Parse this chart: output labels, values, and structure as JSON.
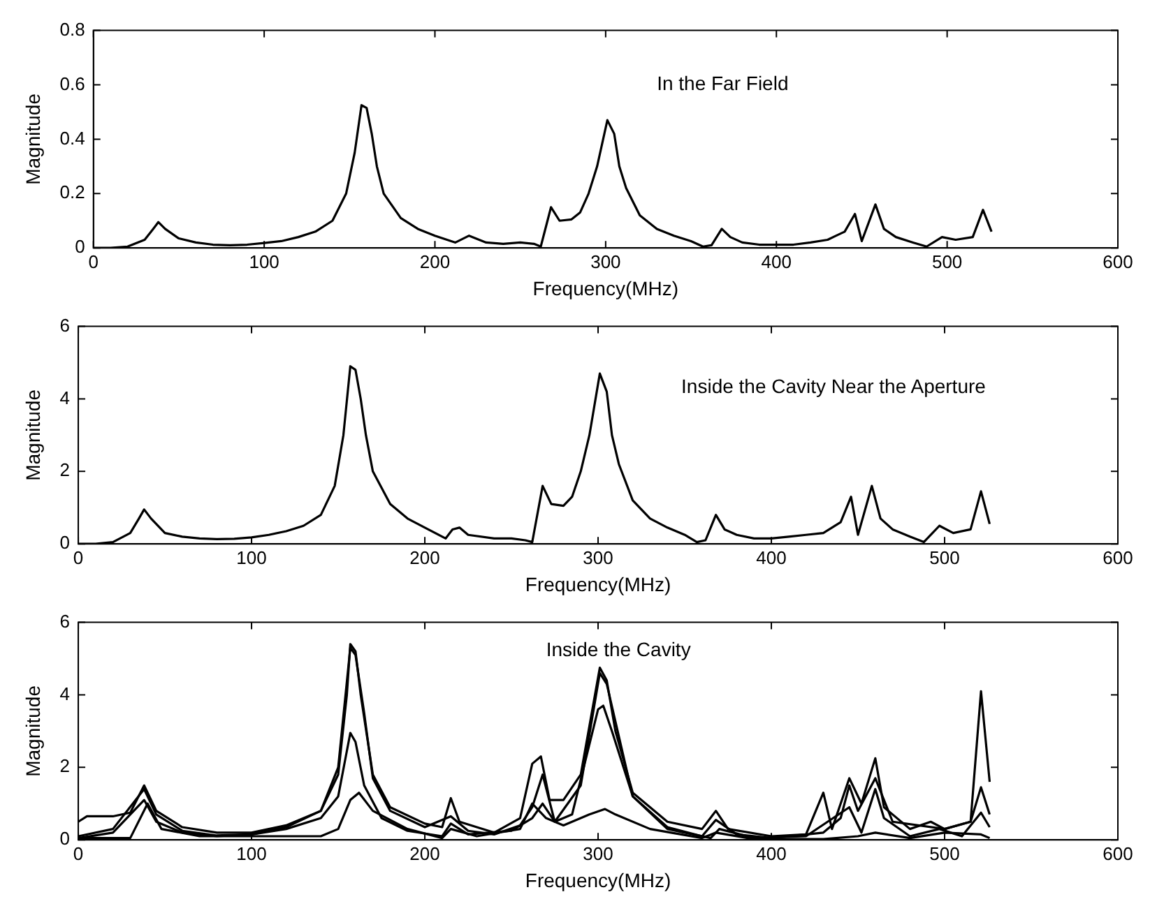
{
  "chart_data": [
    {
      "type": "line",
      "xlabel": "Frequency(MHz)",
      "ylabel": "Magnitude",
      "annotations": [
        "In the Far Field"
      ],
      "xlim": [
        0,
        600
      ],
      "xticks": [
        0,
        100,
        200,
        300,
        400,
        500,
        600
      ],
      "ylim": [
        0,
        0.8
      ],
      "yticks": [
        0,
        0.2,
        0.4,
        0.6,
        0.8
      ],
      "marker": "none",
      "line_style": "solid",
      "series": [
        {
          "color": "#000000",
          "x": [
            0,
            10,
            20,
            30,
            35,
            38,
            42,
            50,
            60,
            70,
            80,
            90,
            100,
            110,
            120,
            130,
            140,
            148,
            153,
            157,
            160,
            163,
            166,
            170,
            180,
            190,
            200,
            212,
            220,
            230,
            240,
            250,
            258,
            262,
            268,
            273,
            280,
            285,
            290,
            295,
            301,
            305,
            308,
            312,
            320,
            330,
            340,
            350,
            357,
            362,
            368,
            373,
            380,
            390,
            400,
            410,
            420,
            430,
            435,
            440,
            446,
            450,
            458,
            463,
            470,
            480,
            488,
            497,
            505,
            515,
            521,
            526
          ],
          "values": [
            0,
            0,
            0.005,
            0.03,
            0.07,
            0.095,
            0.07,
            0.035,
            0.02,
            0.012,
            0.01,
            0.012,
            0.018,
            0.025,
            0.04,
            0.06,
            0.1,
            0.2,
            0.35,
            0.525,
            0.515,
            0.42,
            0.3,
            0.2,
            0.11,
            0.07,
            0.045,
            0.02,
            0.045,
            0.02,
            0.015,
            0.02,
            0.015,
            0.005,
            0.15,
            0.1,
            0.105,
            0.13,
            0.2,
            0.3,
            0.47,
            0.42,
            0.3,
            0.22,
            0.12,
            0.07,
            0.045,
            0.025,
            0.005,
            0.01,
            0.07,
            0.04,
            0.02,
            0.012,
            0.012,
            0.012,
            0.02,
            0.03,
            0.045,
            0.06,
            0.125,
            0.025,
            0.16,
            0.07,
            0.04,
            0.02,
            0.005,
            0.04,
            0.03,
            0.04,
            0.14,
            0.06
          ]
        }
      ]
    },
    {
      "type": "line",
      "xlabel": "Frequency(MHz)",
      "ylabel": "Magnitude",
      "annotations": [
        "Inside the Cavity Near the Aperture"
      ],
      "xlim": [
        0,
        600
      ],
      "xticks": [
        0,
        100,
        200,
        300,
        400,
        500,
        600
      ],
      "ylim": [
        0,
        6
      ],
      "yticks": [
        0,
        2,
        4,
        6
      ],
      "marker": "none",
      "line_style": "solid",
      "series": [
        {
          "color": "#000000",
          "x": [
            0,
            10,
            20,
            30,
            35,
            38,
            42,
            50,
            60,
            70,
            80,
            90,
            100,
            110,
            120,
            130,
            140,
            148,
            153,
            157,
            160,
            163,
            166,
            170,
            180,
            190,
            200,
            212,
            216,
            220,
            225,
            240,
            250,
            258,
            262,
            268,
            273,
            280,
            285,
            290,
            295,
            301,
            305,
            308,
            312,
            320,
            330,
            340,
            350,
            357,
            362,
            368,
            373,
            380,
            390,
            400,
            410,
            420,
            430,
            435,
            440,
            446,
            450,
            458,
            463,
            470,
            480,
            488,
            497,
            505,
            515,
            521,
            526
          ],
          "values": [
            0,
            0,
            0.05,
            0.3,
            0.7,
            0.95,
            0.7,
            0.3,
            0.2,
            0.15,
            0.13,
            0.14,
            0.18,
            0.25,
            0.35,
            0.5,
            0.8,
            1.6,
            3.0,
            4.9,
            4.8,
            4.0,
            3.0,
            2.0,
            1.1,
            0.7,
            0.45,
            0.15,
            0.4,
            0.45,
            0.25,
            0.15,
            0.15,
            0.1,
            0.05,
            1.6,
            1.1,
            1.05,
            1.3,
            2.0,
            3.0,
            4.7,
            4.2,
            3.0,
            2.2,
            1.2,
            0.7,
            0.45,
            0.25,
            0.05,
            0.1,
            0.8,
            0.4,
            0.25,
            0.15,
            0.15,
            0.2,
            0.25,
            0.3,
            0.45,
            0.6,
            1.3,
            0.25,
            1.6,
            0.7,
            0.4,
            0.2,
            0.05,
            0.5,
            0.3,
            0.4,
            1.45,
            0.55
          ]
        }
      ]
    },
    {
      "type": "line",
      "xlabel": "Frequency(MHz)",
      "ylabel": "Magnitude",
      "annotations": [
        "Inside the Cavity"
      ],
      "xlim": [
        0,
        600
      ],
      "xticks": [
        0,
        100,
        200,
        300,
        400,
        500,
        600
      ],
      "ylim": [
        0,
        6
      ],
      "yticks": [
        0,
        2,
        4,
        6
      ],
      "marker": "none",
      "line_style": "solid",
      "series": [
        {
          "color": "#000000",
          "x": [
            0,
            5,
            20,
            30,
            38,
            45,
            60,
            80,
            100,
            120,
            140,
            150,
            155,
            157,
            160,
            163,
            170,
            180,
            200,
            210,
            215,
            220,
            240,
            255,
            262,
            267,
            272,
            280,
            290,
            301,
            305,
            310,
            320,
            340,
            360,
            368,
            375,
            400,
            420,
            430,
            435,
            445,
            452,
            460,
            465,
            480,
            492,
            500,
            515,
            521,
            526
          ],
          "values": [
            0.5,
            0.65,
            0.65,
            0.75,
            1.5,
            0.8,
            0.35,
            0.2,
            0.2,
            0.4,
            0.8,
            1.8,
            4.0,
            5.4,
            5.2,
            4.0,
            1.8,
            0.9,
            0.45,
            0.35,
            1.15,
            0.5,
            0.2,
            0.6,
            2.1,
            2.3,
            1.1,
            1.1,
            1.8,
            4.75,
            4.4,
            3.0,
            1.3,
            0.5,
            0.3,
            0.8,
            0.3,
            0.1,
            0.15,
            1.3,
            0.3,
            1.7,
            1.0,
            2.25,
            0.9,
            0.3,
            0.5,
            0.3,
            0.5,
            4.1,
            1.6
          ]
        },
        {
          "color": "#000000",
          "x": [
            0,
            20,
            38,
            45,
            60,
            80,
            100,
            120,
            140,
            150,
            157,
            160,
            165,
            170,
            180,
            200,
            215,
            225,
            240,
            255,
            262,
            268,
            275,
            290,
            301,
            305,
            320,
            340,
            360,
            368,
            380,
            400,
            430,
            440,
            445,
            450,
            460,
            470,
            500,
            515,
            521,
            526
          ],
          "values": [
            0.1,
            0.3,
            1.4,
            0.7,
            0.25,
            0.12,
            0.15,
            0.35,
            0.8,
            2.0,
            5.3,
            5.1,
            3.5,
            1.7,
            0.8,
            0.35,
            0.65,
            0.25,
            0.15,
            0.4,
            0.9,
            1.8,
            0.5,
            1.5,
            4.6,
            4.3,
            1.2,
            0.35,
            0.1,
            0.55,
            0.15,
            0.05,
            0.2,
            0.6,
            1.5,
            0.8,
            1.7,
            0.5,
            0.3,
            0.5,
            1.45,
            0.7
          ]
        },
        {
          "color": "#000000",
          "x": [
            0,
            20,
            38,
            45,
            60,
            80,
            100,
            120,
            140,
            150,
            157,
            160,
            165,
            175,
            190,
            210,
            215,
            225,
            250,
            262,
            268,
            275,
            285,
            300,
            303,
            308,
            320,
            340,
            365,
            370,
            390,
            420,
            445,
            452,
            460,
            465,
            480,
            497,
            510,
            521,
            526
          ],
          "values": [
            0.05,
            0.2,
            1.1,
            0.5,
            0.2,
            0.1,
            0.15,
            0.3,
            0.6,
            1.2,
            2.95,
            2.7,
            1.5,
            0.6,
            0.25,
            0.1,
            0.45,
            0.15,
            0.25,
            0.6,
            1.0,
            0.5,
            0.7,
            3.6,
            3.7,
            3.0,
            1.2,
            0.3,
            0.05,
            0.3,
            0.05,
            0.1,
            0.9,
            0.2,
            1.4,
            0.6,
            0.1,
            0.3,
            0.1,
            0.75,
            0.35
          ]
        },
        {
          "color": "#000000",
          "x": [
            0,
            30,
            40,
            48,
            70,
            100,
            140,
            150,
            157,
            162,
            170,
            190,
            210,
            215,
            230,
            255,
            262,
            270,
            280,
            295,
            304,
            310,
            330,
            360,
            368,
            390,
            430,
            450,
            460,
            480,
            500,
            521,
            526
          ],
          "values": [
            0.05,
            0.05,
            1.0,
            0.3,
            0.1,
            0.1,
            0.1,
            0.3,
            1.1,
            1.3,
            0.8,
            0.3,
            0.05,
            0.3,
            0.1,
            0.3,
            1.0,
            0.6,
            0.4,
            0.7,
            0.85,
            0.7,
            0.3,
            0.05,
            0.2,
            0.02,
            0.02,
            0.1,
            0.2,
            0.05,
            0.2,
            0.15,
            0.05
          ]
        }
      ]
    }
  ]
}
